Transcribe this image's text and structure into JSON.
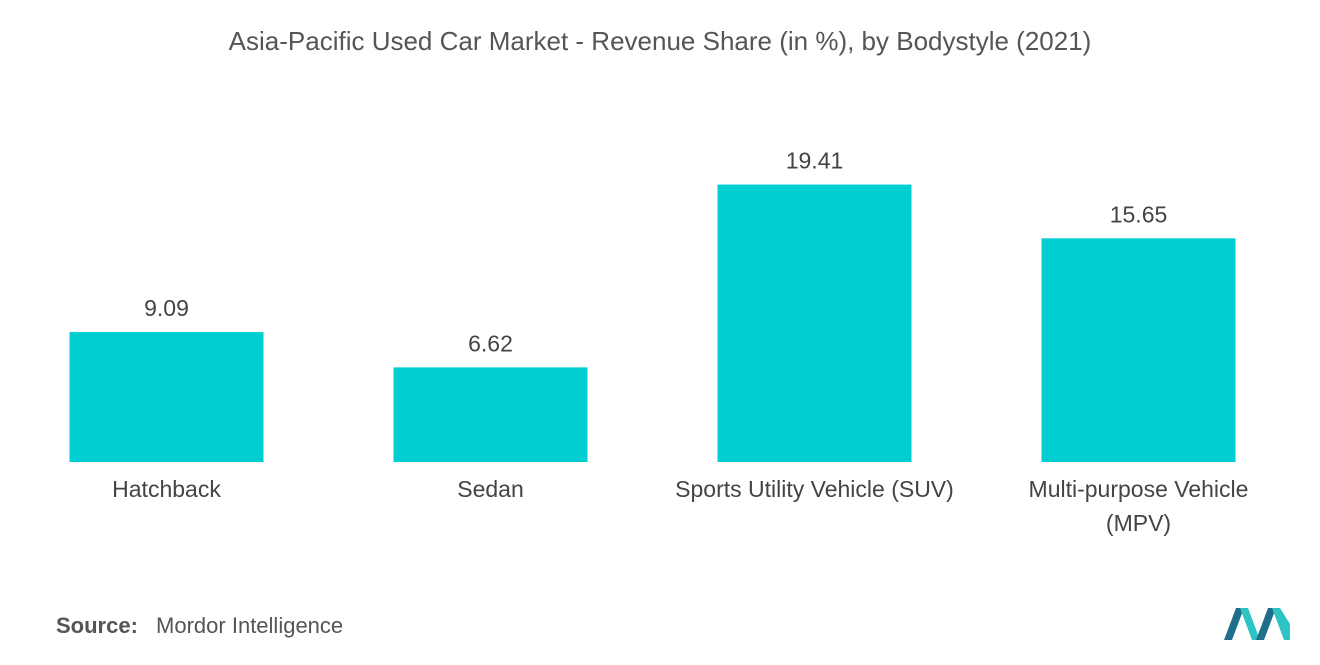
{
  "chart_data": {
    "type": "bar",
    "title": "Asia-Pacific Used Car Market - Revenue Share (in %), by Bodystyle (2021)",
    "categories": [
      [
        "Hatchback"
      ],
      [
        "Sedan"
      ],
      [
        "Sports Utility Vehicle (SUV)"
      ],
      [
        "Multi-purpose Vehicle",
        "(MPV)"
      ]
    ],
    "values": [
      9.09,
      6.62,
      19.41,
      15.65
    ],
    "value_labels": [
      "9.09",
      "6.62",
      "19.41",
      "15.65"
    ],
    "bar_color": "#00CED1",
    "ylim": [
      0,
      20.5
    ],
    "grid": false,
    "legend": "none"
  },
  "source": {
    "label": "Source:",
    "text": "Mordor Intelligence"
  },
  "logo": {
    "icon": "mordor-intelligence-logo-icon",
    "colors": [
      "#1f6f8b",
      "#2ec4c6"
    ]
  }
}
